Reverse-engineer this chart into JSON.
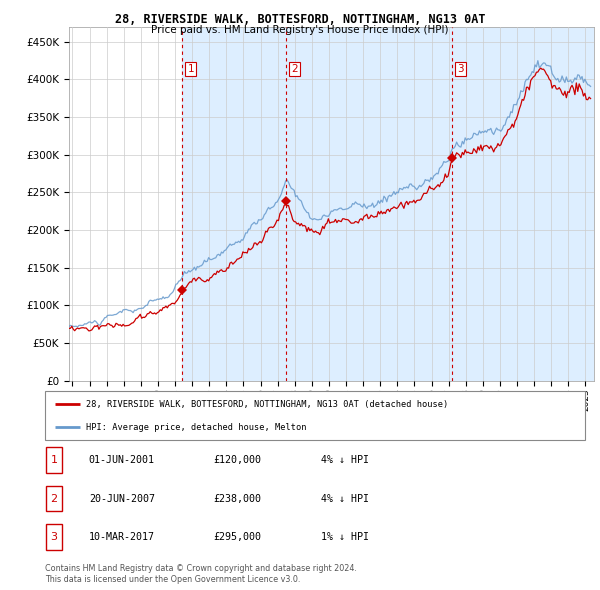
{
  "title": "28, RIVERSIDE WALK, BOTTESFORD, NOTTINGHAM, NG13 0AT",
  "subtitle": "Price paid vs. HM Land Registry's House Price Index (HPI)",
  "ytick_values": [
    0,
    50000,
    100000,
    150000,
    200000,
    250000,
    300000,
    350000,
    400000,
    450000
  ],
  "ylim": [
    0,
    470000
  ],
  "xlim_start": 1994.8,
  "xlim_end": 2025.5,
  "transactions": [
    {
      "index": 1,
      "date_num": 2001.42,
      "price": 120000,
      "date_str": "01-JUN-2001",
      "pct": "4%",
      "dir": "↓"
    },
    {
      "index": 2,
      "date_num": 2007.47,
      "price": 238000,
      "date_str": "20-JUN-2007",
      "pct": "4%",
      "dir": "↓"
    },
    {
      "index": 3,
      "date_num": 2017.19,
      "price": 295000,
      "date_str": "10-MAR-2017",
      "pct": "1%",
      "dir": "↓"
    }
  ],
  "hpi_color": "#6699cc",
  "price_color": "#cc0000",
  "vline_color": "#cc0000",
  "shade_color": "#ddeeff",
  "grid_color": "#cccccc",
  "bg_color": "#ffffff",
  "legend_label_price": "28, RIVERSIDE WALK, BOTTESFORD, NOTTINGHAM, NG13 0AT (detached house)",
  "legend_label_hpi": "HPI: Average price, detached house, Melton",
  "footnote1": "Contains HM Land Registry data © Crown copyright and database right 2024.",
  "footnote2": "This data is licensed under the Open Government Licence v3.0.",
  "xtick_years": [
    1995,
    1996,
    1997,
    1998,
    1999,
    2000,
    2001,
    2002,
    2003,
    2004,
    2005,
    2006,
    2007,
    2008,
    2009,
    2010,
    2011,
    2012,
    2013,
    2014,
    2015,
    2016,
    2017,
    2018,
    2019,
    2020,
    2021,
    2022,
    2023,
    2024,
    2025
  ]
}
